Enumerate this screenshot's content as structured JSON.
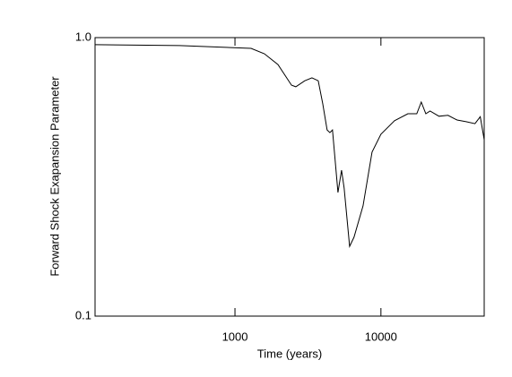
{
  "chart_data": {
    "type": "line",
    "xlabel": "Time (years)",
    "ylabel": "Forward Shock Exapansion Parameter",
    "xscale": "log",
    "yscale": "log",
    "xlim": [
      110,
      51000
    ],
    "ylim": [
      0.1,
      1
    ],
    "xticks": [
      1000,
      10000
    ],
    "yticks": [
      0.1,
      {
        "value": 1,
        "label": "1.0"
      }
    ],
    "series": [
      {
        "color": "#000000",
        "x": [
          110,
          417,
          1290,
          1590,
          1970,
          2440,
          2610,
          3010,
          3370,
          3720,
          3990,
          4280,
          4470,
          4660,
          5080,
          5370,
          5600,
          6100,
          6540,
          7540,
          8690,
          10000,
          12400,
          15300,
          17600,
          18900,
          20300,
          21700,
          25000,
          28800,
          33200,
          38300,
          44100,
          47900,
          51000
        ],
        "values": [
          0.943,
          0.936,
          0.915,
          0.875,
          0.8,
          0.675,
          0.666,
          0.7,
          0.717,
          0.7,
          0.58,
          0.466,
          0.456,
          0.466,
          0.278,
          0.334,
          0.288,
          0.178,
          0.192,
          0.249,
          0.388,
          0.45,
          0.503,
          0.533,
          0.533,
          0.587,
          0.533,
          0.545,
          0.522,
          0.526,
          0.506,
          0.499,
          0.491,
          0.52,
          0.43
        ]
      }
    ]
  }
}
